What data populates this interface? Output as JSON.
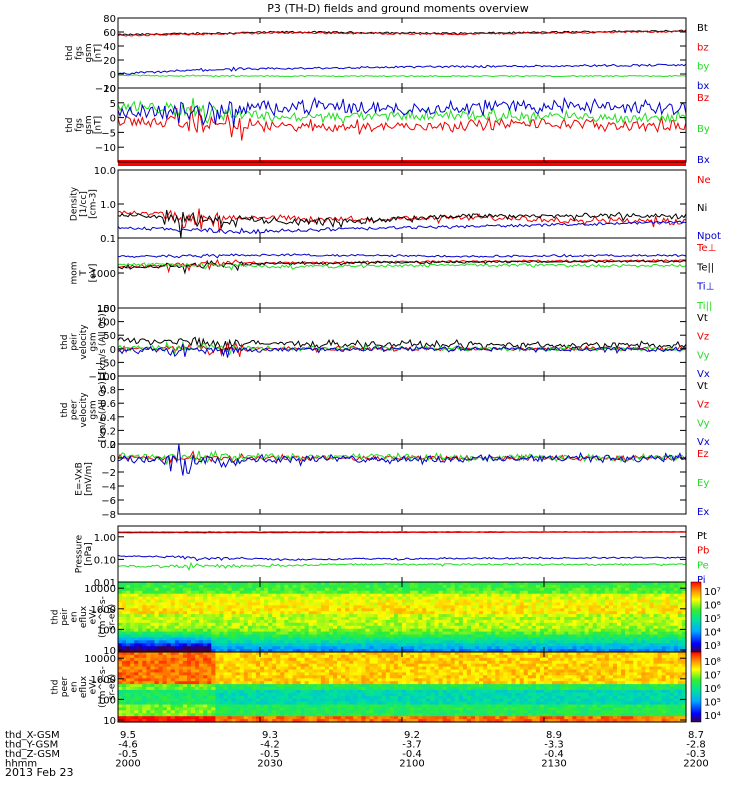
{
  "title": "P3 (TH-D) fields and ground moments overview",
  "date": "2013 Feb 23",
  "colors": {
    "black": "#000000",
    "red": "#ee0000",
    "green": "#22dd22",
    "blue": "#0000cc",
    "red_bar": "#ff0000"
  },
  "time_axis": {
    "start_hhmm": "2000",
    "end_hhmm": "2200",
    "rows": [
      {
        "label": "thd_X-GSM",
        "values": [
          "9.5",
          "9.3",
          "9.2",
          "8.9",
          "8.7"
        ]
      },
      {
        "label": "thd_Y-GSM",
        "values": [
          "-4.6",
          "-4.2",
          "-3.7",
          "-3.3",
          "-2.8"
        ]
      },
      {
        "label": "thd_Z-GSM",
        "values": [
          "-0.5",
          "-0.5",
          "-0.4",
          "-0.4",
          "-0.3"
        ]
      },
      {
        "label": "hhmm",
        "values": [
          "2000",
          "2030",
          "2100",
          "2130",
          "2200"
        ]
      }
    ]
  },
  "chart_data": [
    {
      "type": "line",
      "id": "p1",
      "ylabel": [
        "thd",
        "fgs",
        "gsm",
        "[nT]"
      ],
      "scale": "linear",
      "ylim": [
        -20,
        80
      ],
      "ticks": [
        {
          "v": 80,
          "l": "80"
        },
        {
          "v": 60,
          "l": "60"
        },
        {
          "v": 40,
          "l": "40"
        },
        {
          "v": 20,
          "l": "20"
        },
        {
          "v": 0,
          "l": "0"
        },
        {
          "v": -20,
          "l": "−20"
        }
      ],
      "series": [
        {
          "name": "Bt",
          "color": "#000000",
          "base": [
            [
              0,
              56
            ],
            [
              0.3,
              60
            ],
            [
              0.6,
              58
            ],
            [
              1,
              62
            ]
          ],
          "noise": 1.2,
          "burst": 1
        },
        {
          "name": "bz",
          "color": "#ee0000",
          "base": [
            [
              0,
              55
            ],
            [
              0.3,
              59
            ],
            [
              0.6,
              57
            ],
            [
              1,
              61
            ]
          ],
          "noise": 1.2,
          "burst": 1
        },
        {
          "name": "by",
          "color": "#22dd22",
          "base": [
            [
              0,
              -2
            ],
            [
              0.2,
              -3
            ],
            [
              1,
              -3
            ]
          ],
          "noise": 0.8,
          "burst": 1
        },
        {
          "name": "bx",
          "color": "#0000cc",
          "base": [
            [
              0,
              0
            ],
            [
              0.15,
              6
            ],
            [
              0.5,
              10
            ],
            [
              1,
              13
            ]
          ],
          "noise": 1.5,
          "burst": 2
        }
      ]
    },
    {
      "type": "line",
      "id": "p2",
      "ylabel": [
        "thd",
        "fgs",
        "gsm",
        "[nT]"
      ],
      "scale": "linear",
      "ylim": [
        -15,
        10
      ],
      "ticks": [
        {
          "v": 10,
          "l": "10"
        },
        {
          "v": 5,
          "l": "5"
        },
        {
          "v": 0,
          "l": "0"
        },
        {
          "v": -5,
          "l": "−5"
        },
        {
          "v": -10,
          "l": "−10"
        }
      ],
      "series": [
        {
          "name": "Bz",
          "color": "#ee0000",
          "base": [
            [
              0,
              -1
            ],
            [
              0.1,
              -2
            ],
            [
              0.3,
              -3
            ],
            [
              0.5,
              -3
            ],
            [
              0.75,
              -2
            ],
            [
              1,
              -3
            ]
          ],
          "noise": 1.5,
          "burst": 6
        },
        {
          "name": "By",
          "color": "#22dd22",
          "base": [
            [
              0,
              4
            ],
            [
              0.1,
              3
            ],
            [
              0.3,
              0
            ],
            [
              0.6,
              1
            ],
            [
              0.85,
              0
            ],
            [
              1,
              0
            ]
          ],
          "noise": 1.5,
          "burst": 5
        },
        {
          "name": "Bx",
          "color": "#0000cc",
          "base": [
            [
              0,
              2
            ],
            [
              0.15,
              2
            ],
            [
              0.3,
              4
            ],
            [
              0.5,
              3
            ],
            [
              0.7,
              4
            ],
            [
              1,
              3
            ]
          ],
          "noise": 2,
          "burst": 6
        }
      ]
    },
    {
      "type": "line",
      "id": "p3",
      "ylabel": [
        "Density",
        "[1/cc]",
        "[cm-3]"
      ],
      "scale": "log",
      "ylim": [
        0.1,
        10
      ],
      "ticks": [
        {
          "v": 10,
          "l": "10.0"
        },
        {
          "v": 1,
          "l": "1.0"
        },
        {
          "v": 0.1,
          "l": "0.1"
        }
      ],
      "series": [
        {
          "name": "Ne",
          "color": "#ee0000",
          "base": [
            [
              0,
              0.6
            ],
            [
              0.15,
              0.4
            ],
            [
              0.4,
              0.35
            ],
            [
              0.6,
              0.4
            ],
            [
              1,
              0.3
            ]
          ],
          "noise": 0.06,
          "burst": 0.3
        },
        {
          "name": "Ni",
          "color": "#000000",
          "base": [
            [
              0,
              0.5
            ],
            [
              0.15,
              0.35
            ],
            [
              0.4,
              0.3
            ],
            [
              0.6,
              0.45
            ],
            [
              1,
              0.45
            ]
          ],
          "noise": 0.06,
          "burst": 0.3
        },
        {
          "name": "Npot",
          "color": "#0000cc",
          "base": [
            [
              0,
              0.2
            ],
            [
              0.2,
              0.15
            ],
            [
              0.5,
              0.2
            ],
            [
              0.8,
              0.25
            ],
            [
              1,
              0.3
            ]
          ],
          "noise": 0.02,
          "burst": 0.03
        }
      ]
    },
    {
      "type": "line",
      "id": "p4",
      "ylabel": [
        "mom",
        "T",
        "[eV]"
      ],
      "scale": "log",
      "ylim": [
        100,
        10000
      ],
      "ticks": [
        {
          "v": 1000,
          "l": "1000"
        },
        {
          "v": 100,
          "l": "100"
        }
      ],
      "series": [
        {
          "name": "Te⊥",
          "color": "#ee0000",
          "base": [
            [
              0,
              1500
            ],
            [
              0.2,
              1900
            ],
            [
              0.5,
              2100
            ],
            [
              1,
              2300
            ]
          ],
          "noise": 120,
          "burst": 600
        },
        {
          "name": "Te||",
          "color": "#000000",
          "base": [
            [
              0,
              1400
            ],
            [
              0.2,
              1800
            ],
            [
              0.5,
              2000
            ],
            [
              1,
              2200
            ]
          ],
          "noise": 120,
          "burst": 700
        },
        {
          "name": "Ti⊥",
          "color": "#0000cc",
          "base": [
            [
              0,
              3000
            ],
            [
              0.3,
              3300
            ],
            [
              0.6,
              3000
            ],
            [
              1,
              3200
            ]
          ],
          "noise": 200,
          "burst": 400
        },
        {
          "name": "Ti||",
          "color": "#22dd22",
          "base": [
            [
              0,
              1800
            ],
            [
              0.3,
              1500
            ],
            [
              0.6,
              1700
            ],
            [
              1,
              1600
            ]
          ],
          "noise": 150,
          "burst": 400
        }
      ]
    },
    {
      "type": "line",
      "id": "p5",
      "ylabel": [
        "thd",
        "peir",
        "velocity",
        "gsm",
        "[km/s (All Qs)]"
      ],
      "scale": "linear",
      "ylim": [
        -100,
        150
      ],
      "ticks": [
        {
          "v": 150,
          "l": "150"
        },
        {
          "v": 100,
          "l": "100"
        },
        {
          "v": 50,
          "l": "50"
        },
        {
          "v": 0,
          "l": "0"
        },
        {
          "v": -50,
          "l": "−50"
        },
        {
          "v": -100,
          "l": "−100"
        }
      ],
      "series": [
        {
          "name": "Vt",
          "color": "#000000",
          "base": [
            [
              0,
              30
            ],
            [
              0.2,
              20
            ],
            [
              0.5,
              15
            ],
            [
              1,
              12
            ]
          ],
          "noise": 8,
          "burst": 50
        },
        {
          "name": "Vz",
          "color": "#ee0000",
          "base": [
            [
              0,
              0
            ],
            [
              0.5,
              0
            ],
            [
              1,
              0
            ]
          ],
          "noise": 6,
          "burst": 25
        },
        {
          "name": "Vy",
          "color": "#22dd22",
          "base": [
            [
              0,
              5
            ],
            [
              0.5,
              0
            ],
            [
              1,
              0
            ]
          ],
          "noise": 6,
          "burst": 30
        },
        {
          "name": "Vx",
          "color": "#0000cc",
          "base": [
            [
              0,
              -5
            ],
            [
              0.5,
              0
            ],
            [
              1,
              -3
            ]
          ],
          "noise": 7,
          "burst": 30
        }
      ]
    },
    {
      "type": "line",
      "id": "p6",
      "ylabel": [
        "thd",
        "peer",
        "velocity",
        "gsm",
        "[km/s (All Qs)]"
      ],
      "scale": "linear",
      "ylim": [
        0,
        1
      ],
      "ticks": [
        {
          "v": 1,
          "l": "1.0"
        },
        {
          "v": 0.8,
          "l": "0.8"
        },
        {
          "v": 0.6,
          "l": "0.6"
        },
        {
          "v": 0.4,
          "l": "0.4"
        },
        {
          "v": 0.2,
          "l": "0.2"
        },
        {
          "v": 0,
          "l": "0.0"
        }
      ],
      "series": [
        {
          "name": "Vt",
          "color": "#000000",
          "base": [],
          "noise": 0,
          "burst": 0
        },
        {
          "name": "Vz",
          "color": "#ee0000",
          "base": [],
          "noise": 0,
          "burst": 0
        },
        {
          "name": "Vy",
          "color": "#22dd22",
          "base": [],
          "noise": 0,
          "burst": 0
        },
        {
          "name": "Vx",
          "color": "#0000cc",
          "base": [],
          "noise": 0,
          "burst": 0
        }
      ]
    },
    {
      "type": "line",
      "id": "p7",
      "ylabel": [
        "E=-VxB",
        "[mV/m]"
      ],
      "scale": "linear",
      "ylim": [
        -8,
        2
      ],
      "ticks": [
        {
          "v": 2,
          "l": "2"
        },
        {
          "v": 0,
          "l": "0"
        },
        {
          "v": -2,
          "l": "−2"
        },
        {
          "v": -4,
          "l": "−4"
        },
        {
          "v": -6,
          "l": "−6"
        },
        {
          "v": -8,
          "l": "−8"
        }
      ],
      "series": [
        {
          "name": "Ez",
          "color": "#ee0000",
          "base": [
            [
              0,
              0
            ],
            [
              1,
              0
            ]
          ],
          "noise": 0.3,
          "burst": 0.8
        },
        {
          "name": "Ey",
          "color": "#22dd22",
          "base": [
            [
              0,
              0.3
            ],
            [
              1,
              0
            ]
          ],
          "noise": 0.4,
          "burst": 1.2
        },
        {
          "name": "Ex",
          "color": "#0000cc",
          "base": [
            [
              0,
              -0.3
            ],
            [
              1,
              0
            ]
          ],
          "noise": 0.4,
          "burst": 2.5
        }
      ]
    },
    {
      "type": "line",
      "id": "p8",
      "ylabel": [
        "Pressure",
        "[nPa]"
      ],
      "scale": "log",
      "ylim": [
        0.01,
        3
      ],
      "ticks": [
        {
          "v": 1,
          "l": "1.00"
        },
        {
          "v": 0.1,
          "l": "0.10"
        },
        {
          "v": 0.01,
          "l": "0.01"
        }
      ],
      "series": [
        {
          "name": "Pt",
          "color": "#000000",
          "base": [
            [
              0,
              1.6
            ],
            [
              1,
              1.65
            ]
          ],
          "noise": 0.02,
          "burst": 0.05
        },
        {
          "name": "Pb",
          "color": "#ee0000",
          "base": [
            [
              0,
              1.5
            ],
            [
              1,
              1.6
            ]
          ],
          "noise": 0.02,
          "burst": 0.05
        },
        {
          "name": "Pe",
          "color": "#22dd22",
          "base": [
            [
              0,
              0.05
            ],
            [
              0.2,
              0.05
            ],
            [
              0.4,
              0.06
            ],
            [
              1,
              0.06
            ]
          ],
          "noise": 0.005,
          "burst": 0.02
        },
        {
          "name": "Pi",
          "color": "#0000cc",
          "base": [
            [
              0,
              0.14
            ],
            [
              0.3,
              0.1
            ],
            [
              0.6,
              0.11
            ],
            [
              1,
              0.12
            ]
          ],
          "noise": 0.008,
          "burst": 0.03
        }
      ]
    },
    {
      "type": "heatmap",
      "id": "p9",
      "ylabel": [
        "thd",
        "peir",
        "en",
        "eflux",
        "eV/",
        "(cm^2-s-",
        "sr-eV)"
      ],
      "scale": "log",
      "ylim": [
        8,
        20000
      ],
      "ticks": [
        {
          "v": 10000,
          "l": "10000"
        },
        {
          "v": 1000,
          "l": "1000"
        },
        {
          "v": 100,
          "l": "100"
        },
        {
          "v": 10,
          "l": "10"
        }
      ],
      "colorbar": {
        "ticks": [
          "10⁷",
          "10⁶",
          "10⁵",
          "10⁴",
          "10³"
        ]
      }
    },
    {
      "type": "heatmap",
      "id": "p10",
      "ylabel": [
        "thd",
        "peer",
        "en",
        "eflux",
        "eV/",
        "(cm^2-s-",
        "sr-eV)"
      ],
      "scale": "log",
      "ylim": [
        8,
        20000
      ],
      "ticks": [
        {
          "v": 10000,
          "l": "10000"
        },
        {
          "v": 1000,
          "l": "1000"
        },
        {
          "v": 100,
          "l": "100"
        },
        {
          "v": 10,
          "l": "10"
        }
      ],
      "colorbar": {
        "ticks": [
          "10⁸",
          "10⁷",
          "10⁶",
          "10⁵",
          "10⁴"
        ]
      }
    }
  ]
}
